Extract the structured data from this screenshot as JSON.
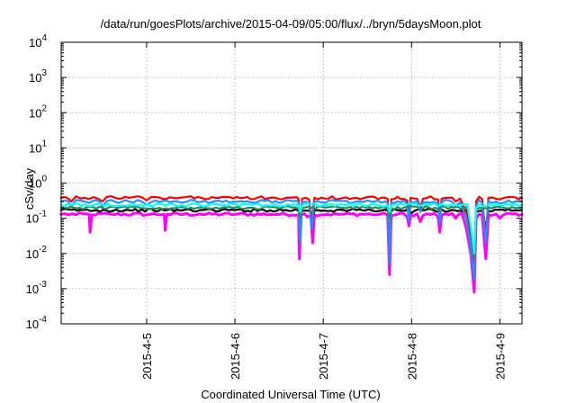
{
  "chart_data": {
    "type": "line",
    "title": "/data/run/goesPlots/archive/2015-04-09/05:00/flux/../bryn/5daysMoon.plot",
    "xlabel": "Coordinated Universal Time (UTC)",
    "ylabel": "cSv/day",
    "yscale": "log",
    "ylim": [
      0.0001,
      10000
    ],
    "xlim": [
      4.033,
      9.25
    ],
    "y_ticks": [
      {
        "value": 0.0001,
        "base": "10",
        "exp": "-4"
      },
      {
        "value": 0.001,
        "base": "10",
        "exp": "-3"
      },
      {
        "value": 0.01,
        "base": "10",
        "exp": "-2"
      },
      {
        "value": 0.1,
        "base": "10",
        "exp": "-1"
      },
      {
        "value": 1,
        "base": "10",
        "exp": "0"
      },
      {
        "value": 10,
        "base": "10",
        "exp": "1"
      },
      {
        "value": 100,
        "base": "10",
        "exp": "2"
      },
      {
        "value": 1000,
        "base": "10",
        "exp": "3"
      },
      {
        "value": 10000,
        "base": "10",
        "exp": "4"
      }
    ],
    "x_ticks": [
      {
        "value": 5,
        "label": "2015-4-5"
      },
      {
        "value": 6,
        "label": "2015-4-6"
      },
      {
        "value": 7,
        "label": "2015-4-7"
      },
      {
        "value": 8,
        "label": "2015-4-8"
      },
      {
        "value": 9,
        "label": "2015-4-9"
      }
    ],
    "grid": true,
    "series": [
      {
        "color": "#ff00ff",
        "baseline": 0.13,
        "values": [
          [
            4.03,
            0.13
          ],
          [
            4.2,
            0.125
          ],
          [
            4.35,
            0.128
          ],
          [
            4.36,
            0.04
          ],
          [
            4.38,
            0.125
          ],
          [
            4.6,
            0.13
          ],
          [
            5.0,
            0.125
          ],
          [
            5.2,
            0.13
          ],
          [
            5.21,
            0.045
          ],
          [
            5.23,
            0.13
          ],
          [
            5.6,
            0.132
          ],
          [
            6.0,
            0.13
          ],
          [
            6.4,
            0.128
          ],
          [
            6.72,
            0.125
          ],
          [
            6.73,
            0.007
          ],
          [
            6.75,
            0.12
          ],
          [
            6.82,
            0.11
          ],
          [
            6.86,
            0.12
          ],
          [
            6.88,
            0.02
          ],
          [
            6.9,
            0.12
          ],
          [
            7.2,
            0.13
          ],
          [
            7.6,
            0.125
          ],
          [
            7.73,
            0.12
          ],
          [
            7.75,
            0.0025
          ],
          [
            7.77,
            0.12
          ],
          [
            7.95,
            0.11
          ],
          [
            7.97,
            0.06
          ],
          [
            7.99,
            0.12
          ],
          [
            8.1,
            0.08
          ],
          [
            8.13,
            0.12
          ],
          [
            8.3,
            0.11
          ],
          [
            8.32,
            0.04
          ],
          [
            8.34,
            0.12
          ],
          [
            8.5,
            0.1
          ],
          [
            8.52,
            0.12
          ],
          [
            8.62,
            0.05
          ],
          [
            8.67,
            0.01
          ],
          [
            8.71,
            0.0008
          ],
          [
            8.73,
            0.1
          ],
          [
            8.8,
            0.12
          ],
          [
            8.84,
            0.007
          ],
          [
            8.87,
            0.12
          ],
          [
            9.0,
            0.1
          ],
          [
            9.03,
            0.12
          ],
          [
            9.25,
            0.13
          ]
        ]
      },
      {
        "color": "#000000",
        "baseline": 0.17,
        "values": [
          [
            4.03,
            0.17
          ],
          [
            4.4,
            0.165
          ],
          [
            4.8,
            0.17
          ],
          [
            5.2,
            0.168
          ],
          [
            5.6,
            0.17
          ],
          [
            6.0,
            0.17
          ],
          [
            6.4,
            0.168
          ],
          [
            6.72,
            0.165
          ],
          [
            6.74,
            0.1
          ],
          [
            6.76,
            0.165
          ],
          [
            6.88,
            0.1
          ],
          [
            6.9,
            0.165
          ],
          [
            7.3,
            0.17
          ],
          [
            7.73,
            0.165
          ],
          [
            7.75,
            0.1
          ],
          [
            7.77,
            0.165
          ],
          [
            8.0,
            0.14
          ],
          [
            8.3,
            0.15
          ],
          [
            8.6,
            0.15
          ],
          [
            8.67,
            0.03
          ],
          [
            8.71,
            0.004
          ],
          [
            8.73,
            0.15
          ],
          [
            8.84,
            0.05
          ],
          [
            8.87,
            0.16
          ],
          [
            9.25,
            0.17
          ]
        ]
      },
      {
        "color": "#ff0000",
        "baseline": 0.38,
        "values": [
          [
            4.03,
            0.38
          ],
          [
            4.08,
            0.4
          ],
          [
            4.15,
            0.3
          ],
          [
            4.2,
            0.42
          ],
          [
            4.3,
            0.38
          ],
          [
            4.4,
            0.4
          ],
          [
            4.5,
            0.3
          ],
          [
            4.6,
            0.42
          ],
          [
            4.8,
            0.38
          ],
          [
            4.9,
            0.42
          ],
          [
            5.0,
            0.32
          ],
          [
            5.1,
            0.4
          ],
          [
            5.3,
            0.38
          ],
          [
            5.5,
            0.42
          ],
          [
            5.7,
            0.35
          ],
          [
            5.9,
            0.4
          ],
          [
            6.1,
            0.38
          ],
          [
            6.3,
            0.42
          ],
          [
            6.5,
            0.35
          ],
          [
            6.7,
            0.4
          ],
          [
            6.72,
            0.35
          ],
          [
            6.74,
            0.04
          ],
          [
            6.76,
            0.36
          ],
          [
            6.84,
            0.34
          ],
          [
            6.87,
            0.08
          ],
          [
            6.9,
            0.38
          ],
          [
            7.1,
            0.42
          ],
          [
            7.3,
            0.35
          ],
          [
            7.5,
            0.4
          ],
          [
            7.7,
            0.38
          ],
          [
            7.73,
            0.35
          ],
          [
            7.75,
            0.008
          ],
          [
            7.77,
            0.35
          ],
          [
            7.95,
            0.32
          ],
          [
            7.97,
            0.12
          ],
          [
            7.99,
            0.38
          ],
          [
            8.1,
            0.2
          ],
          [
            8.13,
            0.36
          ],
          [
            8.3,
            0.34
          ],
          [
            8.32,
            0.1
          ],
          [
            8.34,
            0.36
          ],
          [
            8.5,
            0.3
          ],
          [
            8.55,
            0.36
          ],
          [
            8.62,
            0.15
          ],
          [
            8.67,
            0.02
          ],
          [
            8.71,
            0.003
          ],
          [
            8.73,
            0.3
          ],
          [
            8.8,
            0.35
          ],
          [
            8.84,
            0.03
          ],
          [
            8.87,
            0.38
          ],
          [
            9.0,
            0.34
          ],
          [
            9.1,
            0.4
          ],
          [
            9.25,
            0.38
          ]
        ]
      },
      {
        "color": "#1e90ff",
        "baseline": 0.3,
        "values": [
          [
            4.03,
            0.3
          ],
          [
            4.08,
            0.32
          ],
          [
            4.15,
            0.22
          ],
          [
            4.2,
            0.33
          ],
          [
            4.3,
            0.3
          ],
          [
            4.4,
            0.32
          ],
          [
            4.5,
            0.22
          ],
          [
            4.6,
            0.33
          ],
          [
            4.8,
            0.3
          ],
          [
            4.9,
            0.33
          ],
          [
            5.0,
            0.24
          ],
          [
            5.1,
            0.32
          ],
          [
            5.3,
            0.3
          ],
          [
            5.5,
            0.33
          ],
          [
            5.7,
            0.27
          ],
          [
            5.9,
            0.32
          ],
          [
            6.1,
            0.3
          ],
          [
            6.3,
            0.33
          ],
          [
            6.5,
            0.27
          ],
          [
            6.7,
            0.32
          ],
          [
            6.72,
            0.28
          ],
          [
            6.74,
            0.02
          ],
          [
            6.76,
            0.28
          ],
          [
            6.84,
            0.26
          ],
          [
            6.87,
            0.05
          ],
          [
            6.9,
            0.3
          ],
          [
            7.1,
            0.33
          ],
          [
            7.3,
            0.27
          ],
          [
            7.5,
            0.32
          ],
          [
            7.7,
            0.3
          ],
          [
            7.73,
            0.27
          ],
          [
            7.75,
            0.005
          ],
          [
            7.77,
            0.27
          ],
          [
            7.95,
            0.25
          ],
          [
            7.97,
            0.08
          ],
          [
            7.99,
            0.3
          ],
          [
            8.1,
            0.15
          ],
          [
            8.13,
            0.28
          ],
          [
            8.3,
            0.26
          ],
          [
            8.32,
            0.07
          ],
          [
            8.34,
            0.28
          ],
          [
            8.5,
            0.23
          ],
          [
            8.55,
            0.28
          ],
          [
            8.62,
            0.1
          ],
          [
            8.67,
            0.015
          ],
          [
            8.71,
            0.0018
          ],
          [
            8.73,
            0.23
          ],
          [
            8.8,
            0.27
          ],
          [
            8.84,
            0.02
          ],
          [
            8.87,
            0.3
          ],
          [
            9.0,
            0.26
          ],
          [
            9.1,
            0.32
          ],
          [
            9.25,
            0.3
          ]
        ]
      },
      {
        "color": "#2e8b57",
        "baseline": 0.2,
        "values": [
          [
            4.03,
            0.2
          ],
          [
            4.5,
            0.2
          ],
          [
            5.0,
            0.19
          ],
          [
            5.5,
            0.2
          ],
          [
            6.0,
            0.2
          ],
          [
            6.5,
            0.19
          ],
          [
            6.72,
            0.19
          ],
          [
            6.74,
            0.1
          ],
          [
            6.76,
            0.19
          ],
          [
            7.2,
            0.2
          ],
          [
            7.73,
            0.19
          ],
          [
            7.75,
            0.1
          ],
          [
            7.77,
            0.19
          ],
          [
            8.3,
            0.18
          ],
          [
            8.67,
            0.05
          ],
          [
            8.71,
            0.008
          ],
          [
            8.73,
            0.18
          ],
          [
            9.25,
            0.2
          ]
        ]
      },
      {
        "color": "#00ffff",
        "baseline": 0.24,
        "values": [
          [
            4.03,
            0.24
          ],
          [
            4.3,
            0.25
          ],
          [
            4.6,
            0.23
          ],
          [
            5.0,
            0.25
          ],
          [
            5.4,
            0.24
          ],
          [
            5.8,
            0.25
          ],
          [
            6.2,
            0.24
          ],
          [
            6.6,
            0.25
          ],
          [
            6.72,
            0.23
          ],
          [
            6.74,
            0.15
          ],
          [
            6.76,
            0.23
          ],
          [
            7.2,
            0.25
          ],
          [
            7.6,
            0.24
          ],
          [
            7.73,
            0.23
          ],
          [
            7.75,
            0.15
          ],
          [
            7.77,
            0.23
          ],
          [
            8.3,
            0.22
          ],
          [
            8.67,
            0.06
          ],
          [
            8.71,
            0.01
          ],
          [
            8.73,
            0.2
          ],
          [
            9.25,
            0.24
          ]
        ]
      }
    ]
  }
}
